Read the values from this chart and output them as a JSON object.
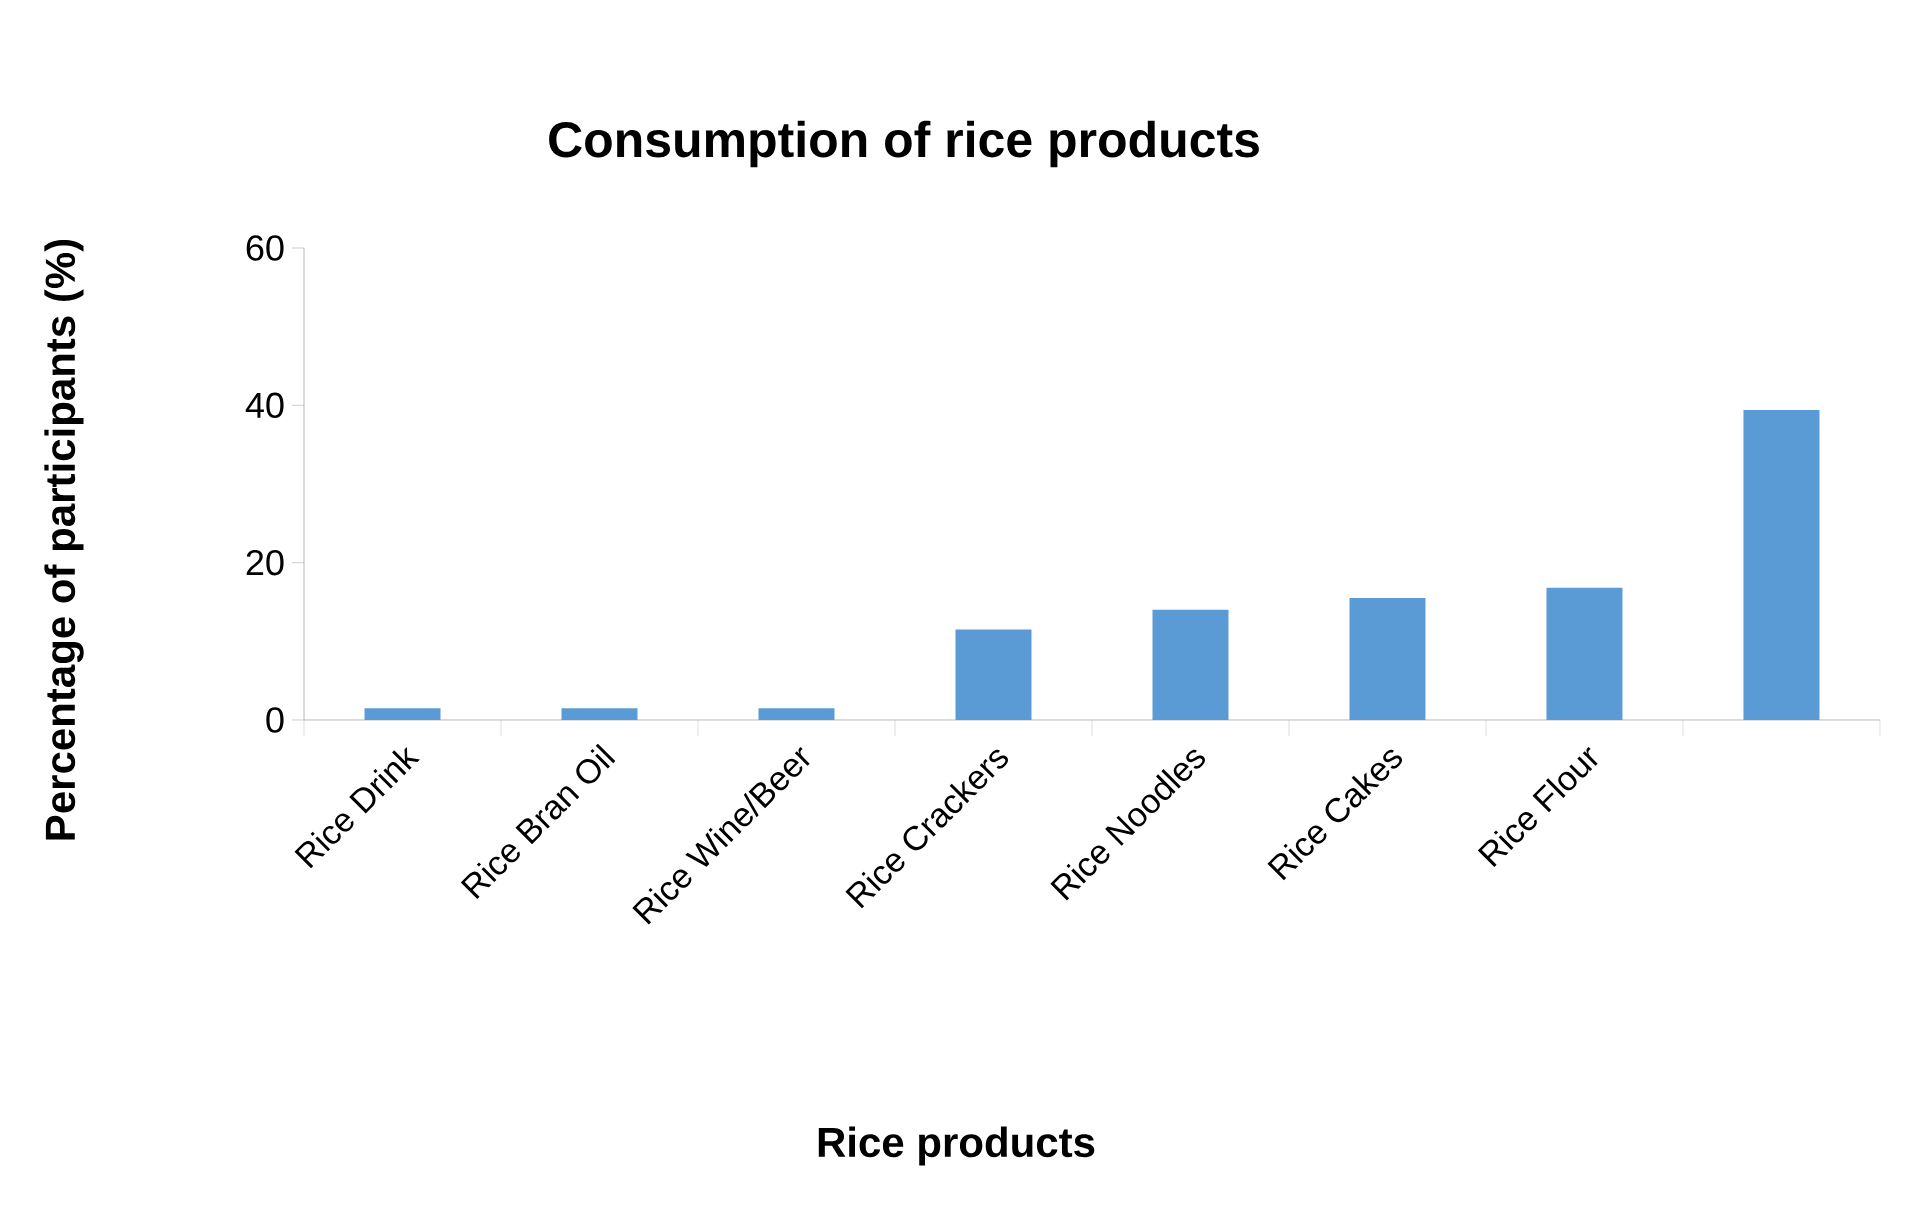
{
  "chart_data": {
    "type": "bar",
    "title": "Consumption of rice products",
    "xlabel": "Rice products",
    "ylabel": "Percentage of participants (%)",
    "categories": [
      "Rice Drink",
      "Rice Bran Oil",
      "Rice Wine/Beer",
      "Rice Crackers",
      "Rice Noodles",
      "Rice Cakes",
      "Rice Flour",
      null
    ],
    "values": [
      1.5,
      1.5,
      1.5,
      11.5,
      14,
      15.5,
      16.8,
      39.4
    ],
    "color": "#5b9bd5",
    "ylim": [
      0,
      60
    ],
    "yticks": [
      0,
      20,
      40,
      60
    ],
    "grid": false
  }
}
